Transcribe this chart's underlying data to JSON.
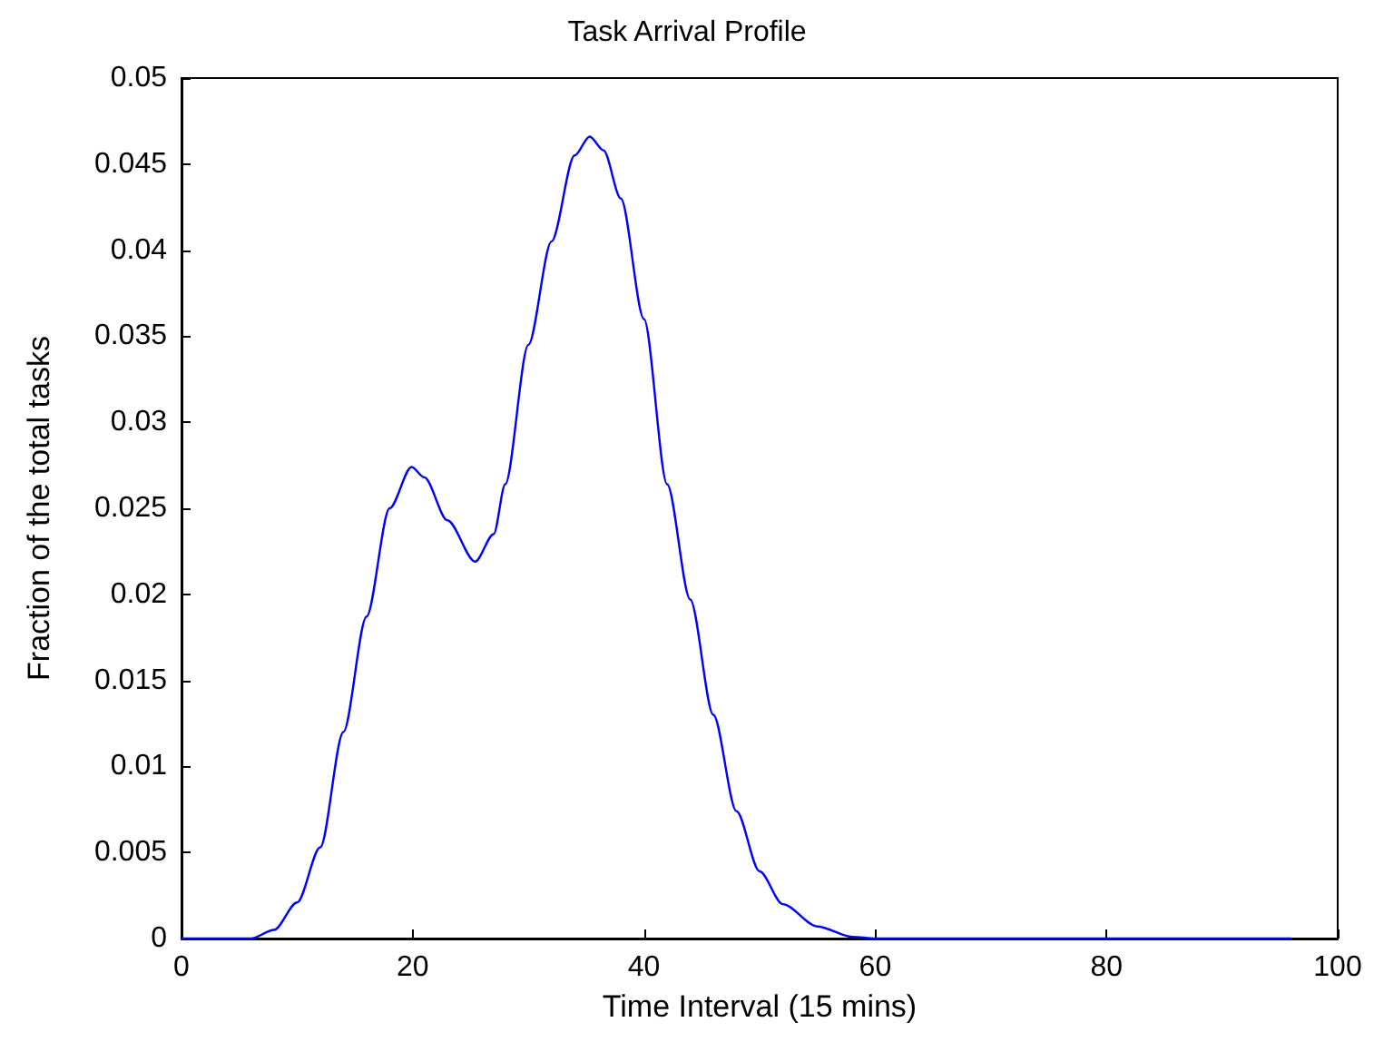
{
  "chart_data": {
    "type": "line",
    "title": "Task Arrival Profile",
    "xlabel": "Time Interval (15 mins)",
    "ylabel": "Fraction of the total tasks",
    "x": [
      0,
      2,
      4,
      6,
      8,
      10,
      12,
      14,
      16,
      18,
      19.9,
      21,
      23,
      25.4,
      27,
      28,
      30,
      32,
      34,
      35.3,
      36.5,
      38,
      40,
      42,
      44,
      46,
      48,
      50,
      52,
      55,
      58,
      60,
      70,
      80,
      90,
      96
    ],
    "series": [
      {
        "color": "#0000ff",
        "values": [
          0,
          0,
          0,
          0,
          0.0005,
          0.0021,
          0.0053,
          0.012,
          0.0187,
          0.025,
          0.0274,
          0.0268,
          0.0243,
          0.0219,
          0.0235,
          0.0264,
          0.0345,
          0.0405,
          0.0455,
          0.0466,
          0.0458,
          0.043,
          0.036,
          0.0264,
          0.0197,
          0.013,
          0.0074,
          0.0039,
          0.002,
          0.0007,
          0.0001,
          0,
          0,
          0,
          0,
          0
        ]
      }
    ],
    "xlim": [
      0,
      100
    ],
    "xticks": [
      0,
      20,
      40,
      60,
      80,
      100
    ],
    "ylim": [
      0,
      0.05
    ],
    "yticks": [
      0,
      0.005,
      0.01,
      0.015,
      0.02,
      0.025,
      0.03,
      0.035,
      0.04,
      0.045,
      0.05
    ],
    "grid": false,
    "marker": "none",
    "line_style": "solid"
  }
}
